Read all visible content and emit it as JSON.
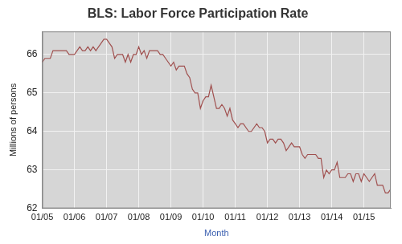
{
  "chart_data": {
    "type": "line",
    "title": "BLS: Labor Force Participation Rate",
    "x_label": "Month",
    "y_label": "Millions of persons",
    "categories": [
      "01/05",
      null,
      null,
      null,
      null,
      null,
      null,
      null,
      null,
      null,
      null,
      null,
      "01/06",
      null,
      null,
      null,
      null,
      null,
      null,
      null,
      null,
      null,
      null,
      null,
      "01/07",
      null,
      null,
      null,
      null,
      null,
      null,
      null,
      null,
      null,
      null,
      null,
      "01/08",
      null,
      null,
      null,
      null,
      null,
      null,
      null,
      null,
      null,
      null,
      null,
      "01/09",
      null,
      null,
      null,
      null,
      null,
      null,
      null,
      null,
      null,
      null,
      null,
      "01/10",
      null,
      null,
      null,
      null,
      null,
      null,
      null,
      null,
      null,
      null,
      null,
      "01/11",
      null,
      null,
      null,
      null,
      null,
      null,
      null,
      null,
      null,
      null,
      null,
      "01/12",
      null,
      null,
      null,
      null,
      null,
      null,
      null,
      null,
      null,
      null,
      null,
      "01/13",
      null,
      null,
      null,
      null,
      null,
      null,
      null,
      null,
      null,
      null,
      null,
      "01/14",
      null,
      null,
      null,
      null,
      null,
      null,
      null,
      null,
      null,
      null,
      null,
      "01/15",
      null,
      null,
      null,
      null,
      null,
      null,
      null,
      null,
      null,
      null
    ],
    "values": [
      65.8,
      65.9,
      65.9,
      65.9,
      66.1,
      66.1,
      66.1,
      66.1,
      66.1,
      66.1,
      66.0,
      66.0,
      66.0,
      66.1,
      66.2,
      66.1,
      66.1,
      66.2,
      66.1,
      66.2,
      66.1,
      66.2,
      66.3,
      66.4,
      66.4,
      66.3,
      66.2,
      65.9,
      66.0,
      66.0,
      66.0,
      65.8,
      66.0,
      65.8,
      66.0,
      66.0,
      66.2,
      66.0,
      66.1,
      65.9,
      66.1,
      66.1,
      66.1,
      66.1,
      66.0,
      66.0,
      65.9,
      65.8,
      65.7,
      65.8,
      65.6,
      65.7,
      65.7,
      65.7,
      65.5,
      65.4,
      65.1,
      65.0,
      65.0,
      64.6,
      64.8,
      64.9,
      64.9,
      65.2,
      64.9,
      64.6,
      64.6,
      64.7,
      64.6,
      64.4,
      64.6,
      64.3,
      64.2,
      64.1,
      64.2,
      64.2,
      64.1,
      64.0,
      64.0,
      64.1,
      64.2,
      64.1,
      64.1,
      64.0,
      63.7,
      63.8,
      63.8,
      63.7,
      63.8,
      63.8,
      63.7,
      63.5,
      63.6,
      63.7,
      63.6,
      63.6,
      63.6,
      63.4,
      63.3,
      63.4,
      63.4,
      63.4,
      63.4,
      63.3,
      63.3,
      62.8,
      63.0,
      62.9,
      63.0,
      63.0,
      63.2,
      62.8,
      62.8,
      62.8,
      62.9,
      62.9,
      62.7,
      62.9,
      62.9,
      62.7,
      62.9,
      62.8,
      62.7,
      62.8,
      62.9,
      62.6,
      62.6,
      62.6,
      62.4,
      62.4,
      62.5
    ],
    "color": "#a0504f",
    "ylim": [
      62,
      66.6
    ],
    "yticks": [
      62,
      63,
      64,
      65,
      66
    ],
    "grid": true
  }
}
